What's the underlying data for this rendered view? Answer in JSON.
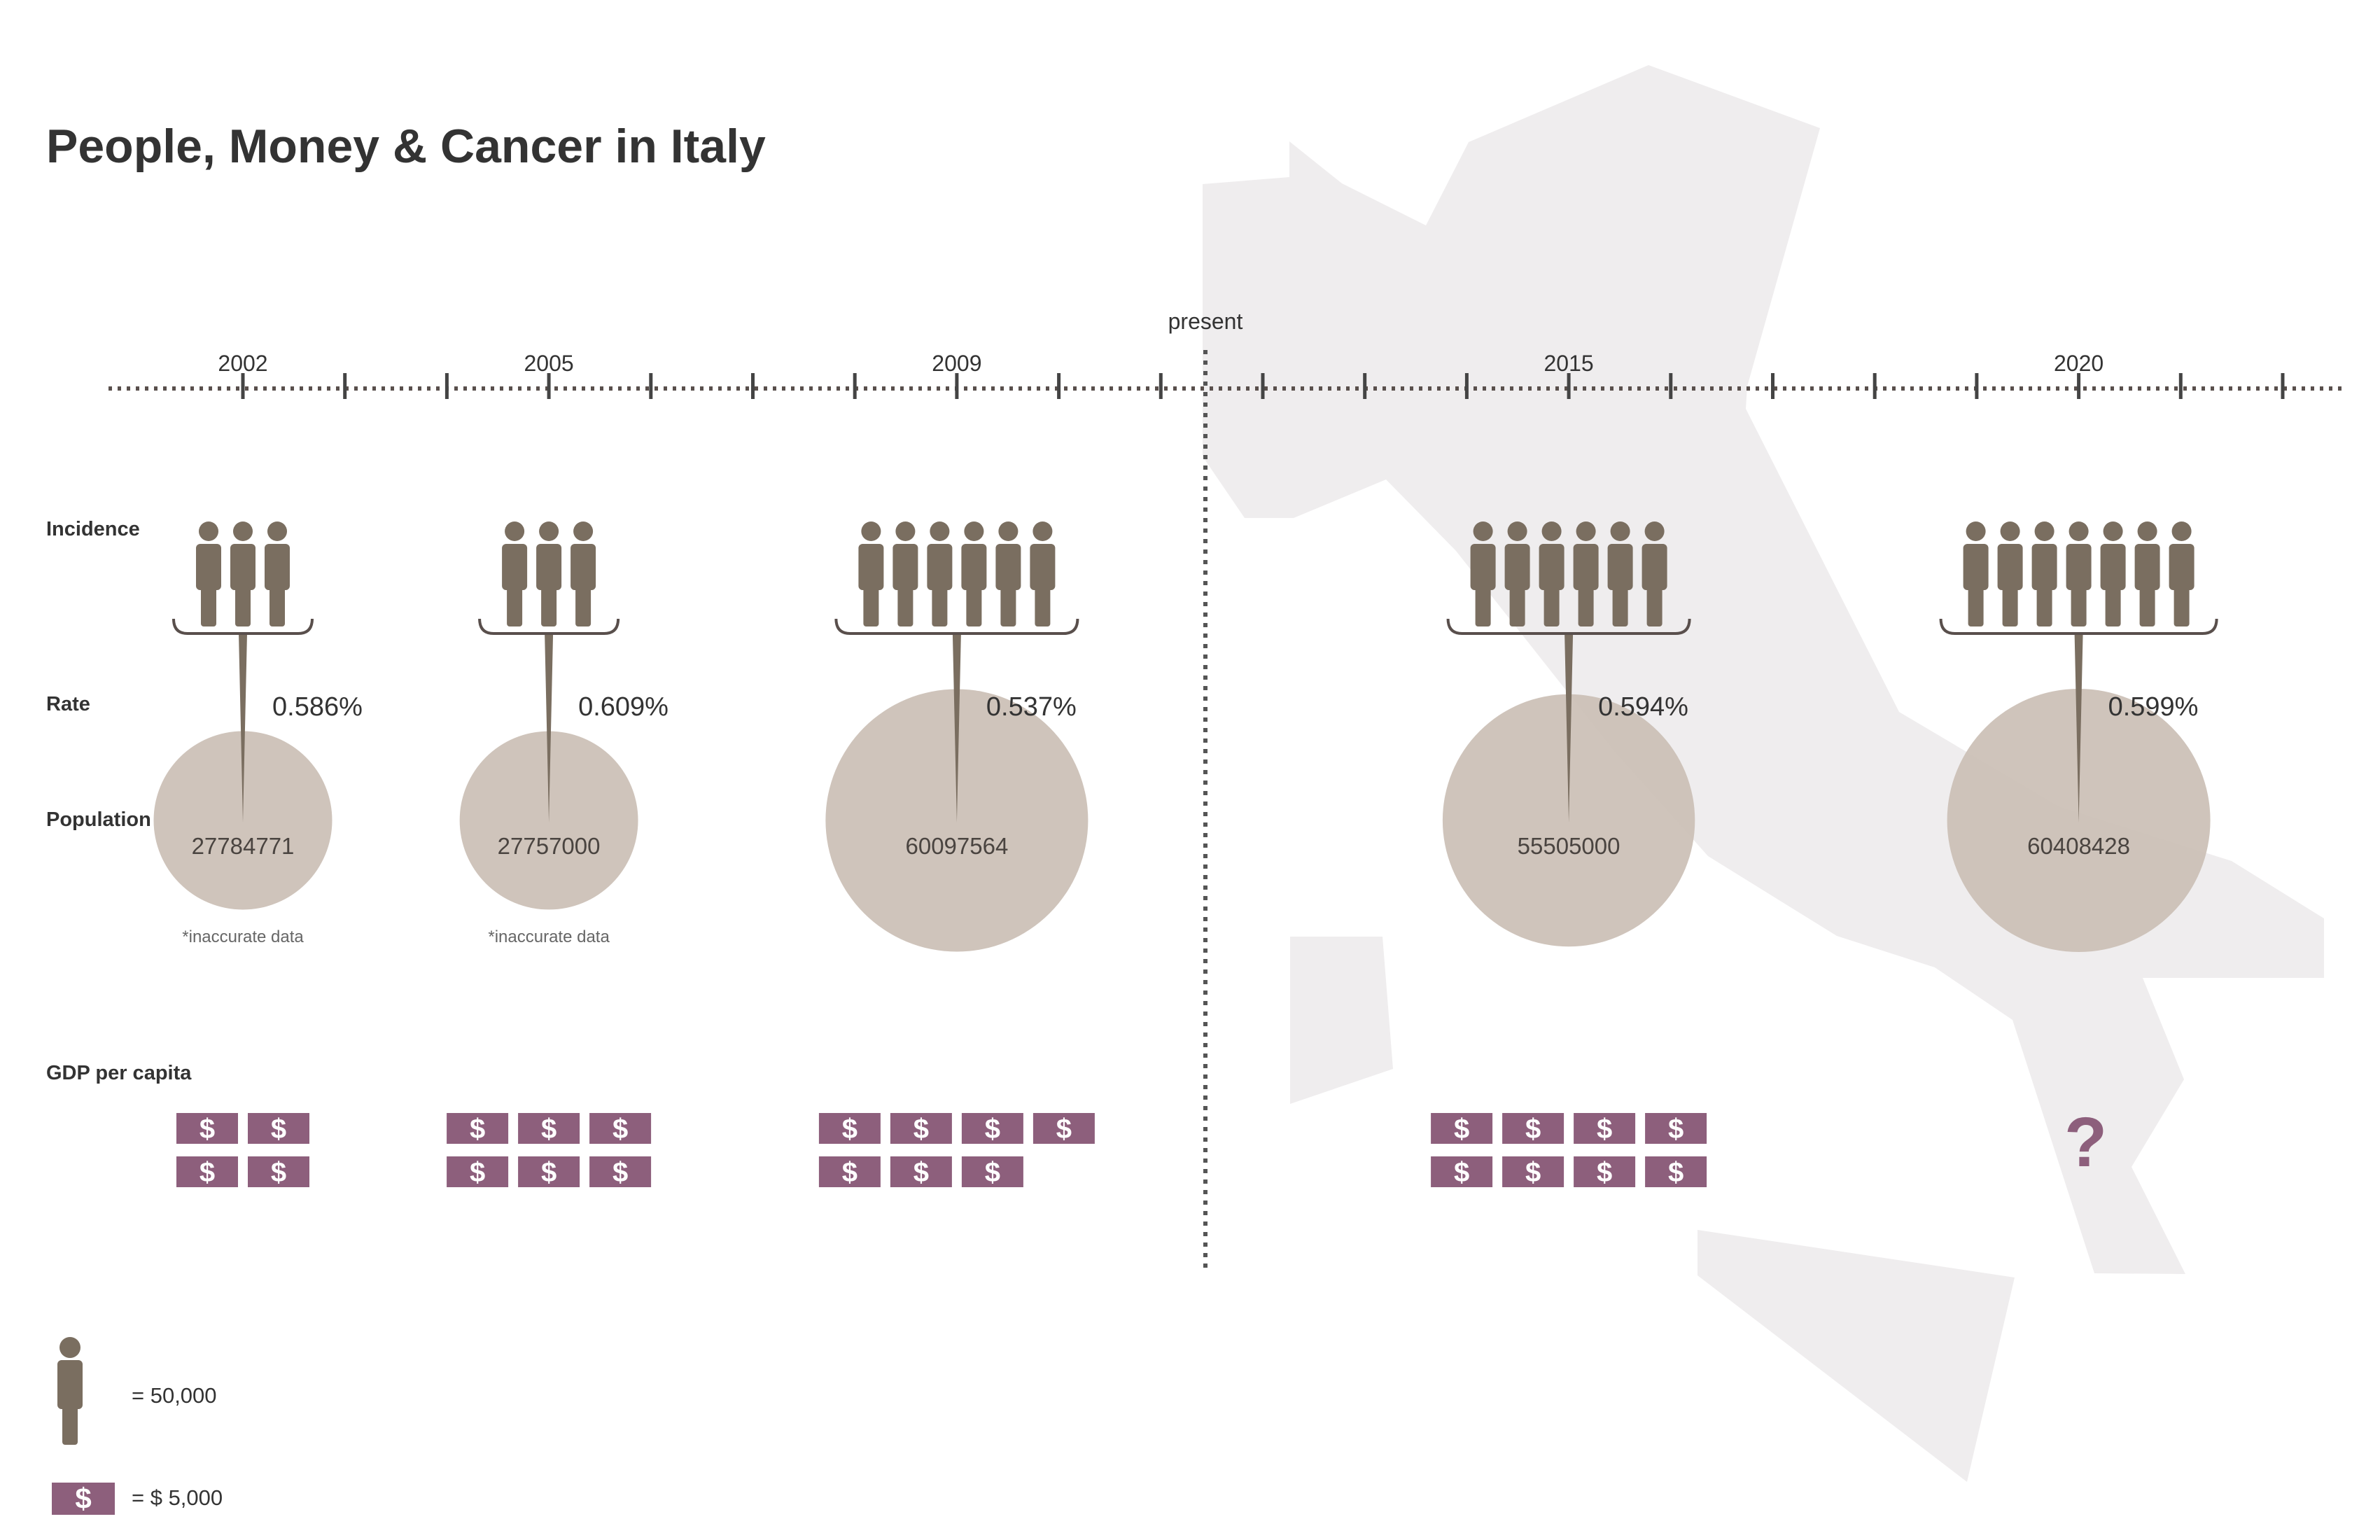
{
  "title": "People, Money & Cancer in Italy",
  "row_labels": {
    "incidence": "Incidence",
    "rate": "Rate",
    "population": "Population",
    "gdp": "GDP per capita"
  },
  "timeline": {
    "present_label": "present",
    "note": "*inaccurate data",
    "unknown_gdp_symbol": "?"
  },
  "legend": {
    "person_value": "= 50,000",
    "money_value": "= $ 5,000",
    "money_symbol": "$"
  },
  "colors": {
    "person": "#7a6e60",
    "circle": "#cbbfb5",
    "money": "#8d5f7c",
    "map": "#efedee",
    "axis": "#594f4c",
    "text": "#333333"
  },
  "chart_data": {
    "type": "pictograph",
    "categories": [
      "2002",
      "2005",
      "2009",
      "2015",
      "2020"
    ],
    "series": [
      {
        "name": "Incidence",
        "values": [
          3,
          3,
          6,
          6,
          7
        ]
      },
      {
        "name": "Rate",
        "labels": [
          "0.586%",
          "0.609%",
          "0.537%",
          "0.594%",
          "0.599%"
        ],
        "values": [
          0.586,
          0.609,
          0.537,
          0.594,
          0.599
        ]
      },
      {
        "name": "Population",
        "labels": [
          "27784771",
          "27757000",
          "60097564",
          "55505000",
          "60408428"
        ],
        "values": [
          27784771,
          27757000,
          60097564,
          55505000,
          60408428
        ]
      },
      {
        "name": "GDP per capita",
        "values": [
          4,
          6,
          7,
          8,
          null
        ]
      }
    ],
    "inaccurate": [
      true,
      true,
      false,
      false,
      false
    ]
  }
}
